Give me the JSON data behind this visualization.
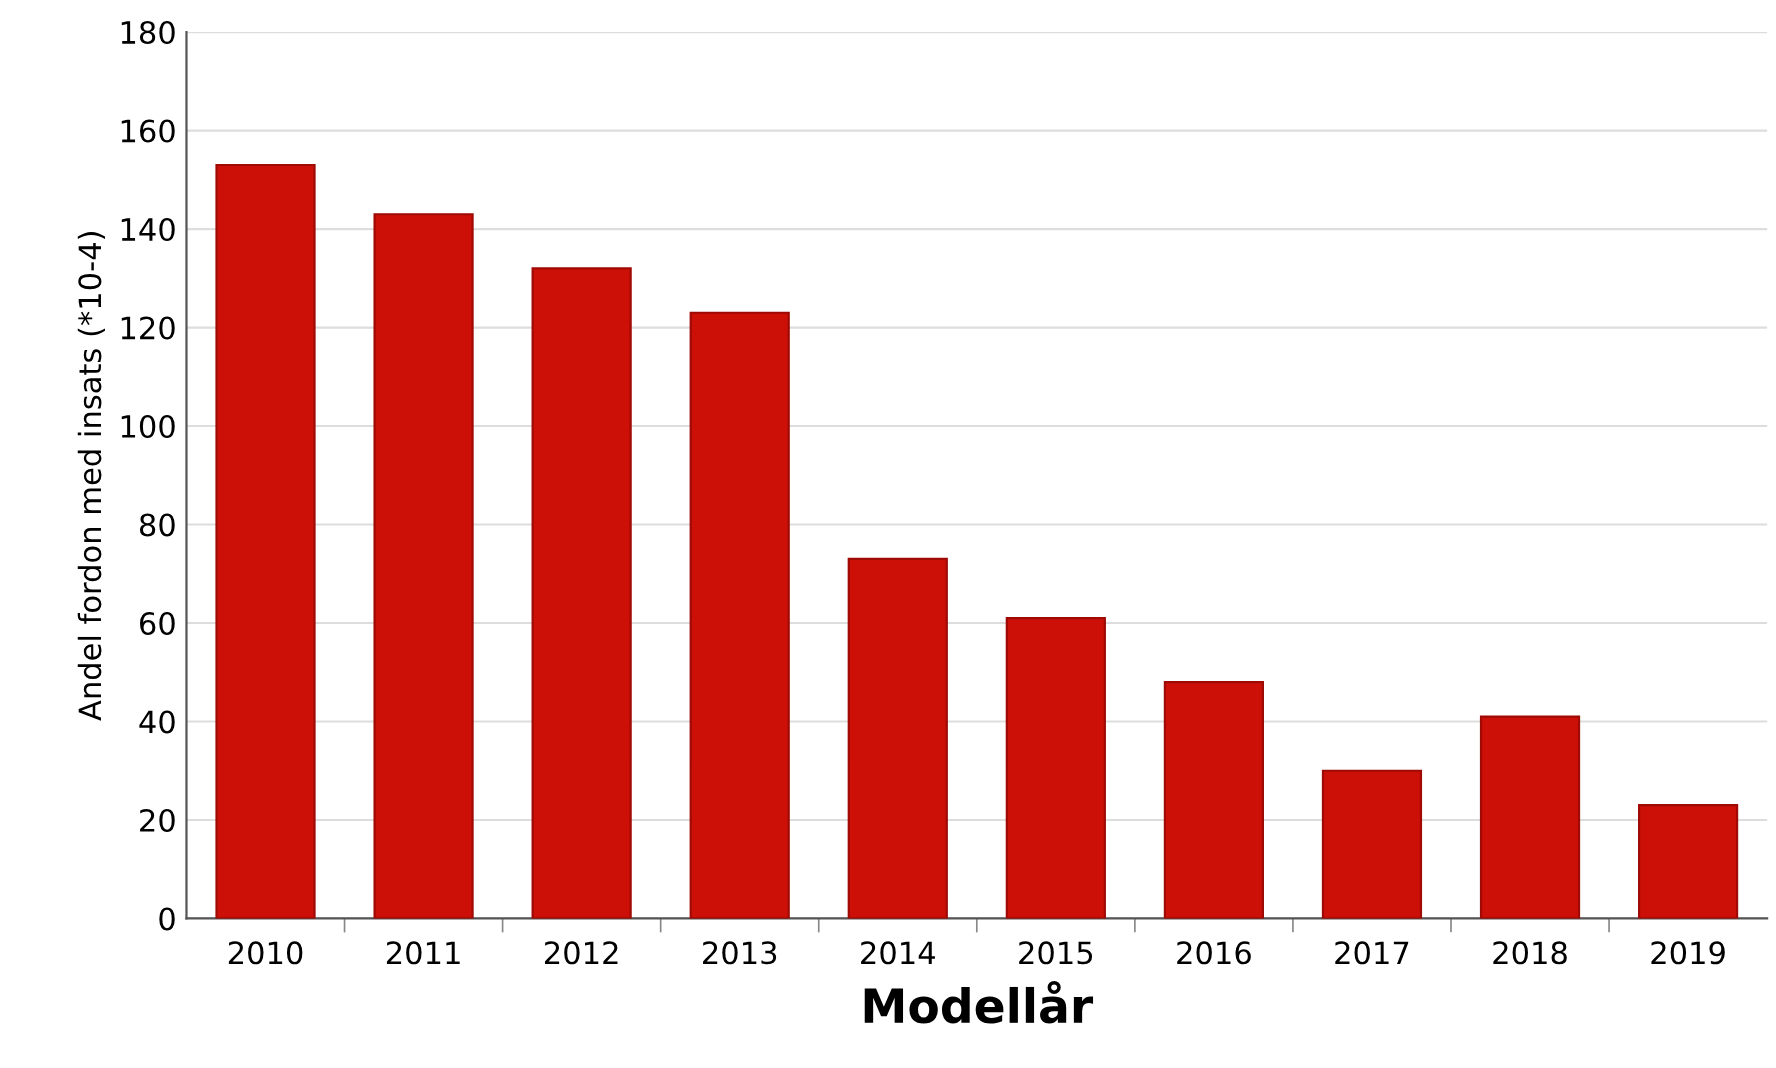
{
  "chart_data": {
    "type": "bar",
    "xlabel": "Modellår",
    "ylabel": "Andel fordon med insats (*10-4)",
    "categories": [
      "2010",
      "2011",
      "2012",
      "2013",
      "2014",
      "2015",
      "2016",
      "2017",
      "2018",
      "2019"
    ],
    "values": [
      153,
      143,
      132,
      123,
      73,
      61,
      48,
      30,
      41,
      23
    ],
    "color": "#cc1008",
    "ylim": [
      0,
      180
    ],
    "yticks": [
      0,
      20,
      40,
      60,
      80,
      100,
      120,
      140,
      160,
      180
    ],
    "grid": "y",
    "legend": false
  }
}
